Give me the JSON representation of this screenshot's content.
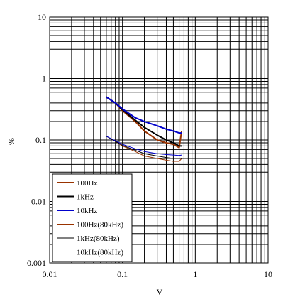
{
  "chart_data": {
    "type": "line",
    "xscale": "log",
    "yscale": "log",
    "xlim": [
      0.01,
      10
    ],
    "ylim": [
      0.001,
      10
    ],
    "grid": true,
    "xlabel": "V",
    "ylabel": "%",
    "legend_position": "bottom-left",
    "x_ticks": [
      {
        "value": 0.01,
        "label": "0.01"
      },
      {
        "value": 0.1,
        "label": "0.1"
      },
      {
        "value": 1,
        "label": "1"
      },
      {
        "value": 10,
        "label": "10"
      }
    ],
    "y_ticks": [
      {
        "value": 0.001,
        "label": "0.001"
      },
      {
        "value": 0.01,
        "label": "0.01"
      },
      {
        "value": 0.1,
        "label": "0.1"
      },
      {
        "value": 1,
        "label": "1"
      },
      {
        "value": 10,
        "label": "10"
      }
    ],
    "series": [
      {
        "name": "100Hz",
        "color": "#993300",
        "width": 2,
        "x": [
          0.06,
          0.08,
          0.1,
          0.15,
          0.2,
          0.3,
          0.4,
          0.5,
          0.6,
          0.65
        ],
        "y": [
          0.5,
          0.4,
          0.3,
          0.2,
          0.14,
          0.1,
          0.09,
          0.085,
          0.075,
          0.14
        ]
      },
      {
        "name": "1kHz",
        "color": "#000000",
        "width": 2,
        "x": [
          0.06,
          0.08,
          0.1,
          0.15,
          0.2,
          0.3,
          0.4,
          0.5,
          0.6,
          0.65
        ],
        "y": [
          0.5,
          0.4,
          0.31,
          0.21,
          0.16,
          0.12,
          0.1,
          0.09,
          0.08,
          0.08
        ]
      },
      {
        "name": "10kHz",
        "color": "#0000cc",
        "width": 2,
        "x": [
          0.06,
          0.08,
          0.1,
          0.15,
          0.2,
          0.3,
          0.4,
          0.5,
          0.6,
          0.65
        ],
        "y": [
          0.5,
          0.4,
          0.32,
          0.23,
          0.2,
          0.17,
          0.15,
          0.14,
          0.13,
          0.13
        ]
      },
      {
        "name": "100Hz(80kHz)",
        "color": "#993300",
        "width": 1,
        "x": [
          0.06,
          0.08,
          0.1,
          0.15,
          0.2,
          0.3,
          0.4,
          0.5,
          0.6,
          0.65
        ],
        "y": [
          0.115,
          0.095,
          0.08,
          0.065,
          0.055,
          0.05,
          0.047,
          0.045,
          0.045,
          0.05
        ]
      },
      {
        "name": "1kHz(80kHz)",
        "color": "#000000",
        "width": 1,
        "x": [
          0.06,
          0.08,
          0.1,
          0.15,
          0.2,
          0.3,
          0.4,
          0.5,
          0.6,
          0.65
        ],
        "y": [
          0.115,
          0.095,
          0.082,
          0.068,
          0.06,
          0.055,
          0.052,
          0.05,
          0.05,
          0.05
        ]
      },
      {
        "name": "10kHz(80kHz)",
        "color": "#0000cc",
        "width": 1,
        "x": [
          0.06,
          0.08,
          0.1,
          0.15,
          0.2,
          0.3,
          0.4,
          0.5,
          0.6,
          0.65
        ],
        "y": [
          0.115,
          0.097,
          0.085,
          0.072,
          0.065,
          0.06,
          0.058,
          0.057,
          0.056,
          0.057
        ]
      }
    ]
  }
}
